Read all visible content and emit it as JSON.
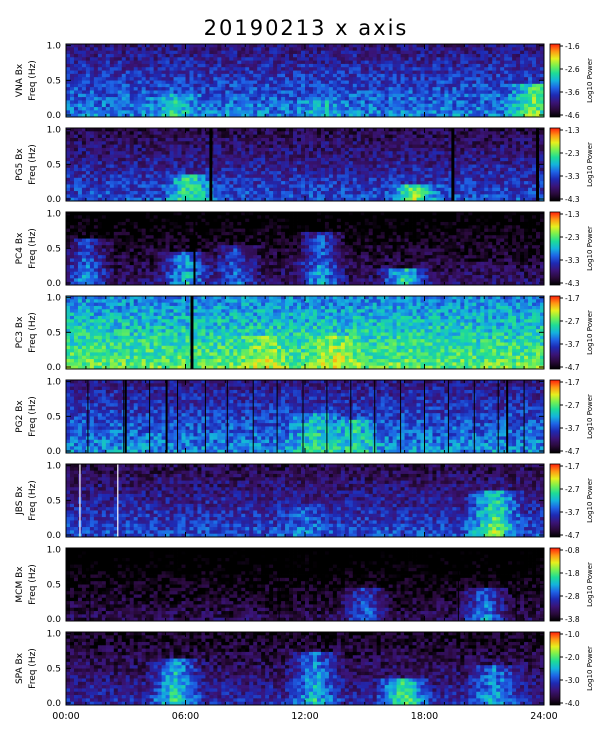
{
  "chart_data": {
    "type": "heatmap",
    "title": "20190213 x axis",
    "xlabel": "",
    "x_tick_labels": [
      "00:00",
      "06:00",
      "12:00",
      "18:00",
      "24:00"
    ],
    "x_range_hours": [
      0,
      24
    ],
    "ylabel": "Freq (Hz)",
    "ylim": [
      0.0,
      1.0
    ],
    "y_tick_labels": [
      "0.0",
      "0.5",
      "1.0"
    ],
    "colorbar_label": "Log10 Power",
    "colorscale": [
      "#000000",
      "#2a0a3c",
      "#3a1478",
      "#1e2ab4",
      "#1e64e6",
      "#14b4dc",
      "#1edc96",
      "#78f050",
      "#e6f01e",
      "#ff9614",
      "#ff1e0a"
    ],
    "panels": [
      {
        "station_label": "VNA Bx",
        "cbar_ticks": [
          "-1.6",
          "-2.6",
          "-3.6",
          "-4.6"
        ],
        "base_level": 0.38,
        "background": "#1a2aa8",
        "lines": [],
        "gaps": [],
        "bursts": [
          [
            5.5,
            0.55,
            0.15
          ],
          [
            13.0,
            0.5,
            0.1
          ],
          [
            23.5,
            0.7,
            0.3
          ]
        ]
      },
      {
        "station_label": "PG5 Bx",
        "cbar_ticks": [
          "-1.3",
          "-2.3",
          "-3.3",
          "-4.3"
        ],
        "base_level": 0.3,
        "background": "#201a8c",
        "lines": [],
        "gaps": [
          [
            7.2,
            7.35
          ],
          [
            19.35,
            19.5
          ],
          [
            23.6,
            23.75
          ]
        ],
        "bursts": [
          [
            6.2,
            0.65,
            0.2
          ],
          [
            17.5,
            0.7,
            0.1
          ]
        ]
      },
      {
        "station_label": "PC4 Bx",
        "cbar_ticks": [
          "-1.3",
          "-2.3",
          "-3.3",
          "-4.3"
        ],
        "base_level": 0.12,
        "background": "#0a0418",
        "lines": [],
        "gaps": [
          [
            6.4,
            6.5
          ]
        ],
        "bursts": [
          [
            1.0,
            0.45,
            0.5
          ],
          [
            6.0,
            0.55,
            0.3
          ],
          [
            8.5,
            0.4,
            0.4
          ],
          [
            12.8,
            0.5,
            0.6
          ],
          [
            17.0,
            0.6,
            0.1
          ]
        ]
      },
      {
        "station_label": "PC3 Bx",
        "cbar_ticks": [
          "-1.7",
          "-2.7",
          "-3.7",
          "-4.7"
        ],
        "base_level": 0.62,
        "background": "#1e9ab4",
        "lines": [],
        "gaps": [
          [
            6.25,
            6.4
          ]
        ],
        "bursts": [
          [
            10.0,
            0.75,
            0.3
          ],
          [
            13.5,
            0.75,
            0.3
          ]
        ]
      },
      {
        "station_label": "PG2 Bx",
        "cbar_ticks": [
          "-1.7",
          "-2.7",
          "-3.7",
          "-4.7"
        ],
        "base_level": 0.4,
        "background": "#1a3ab4",
        "lines": [
          1.1,
          2.9,
          4.2,
          5.6,
          7.0,
          8.1,
          9.4,
          10.6,
          11.9,
          13.1,
          14.3,
          15.5,
          16.8,
          18.0,
          19.2,
          20.5,
          21.7,
          23.0
        ],
        "gaps": [
          [
            2.95,
            3.05
          ],
          [
            5.0,
            5.1
          ],
          [
            22.1,
            22.2
          ]
        ],
        "bursts": [
          [
            12.5,
            0.6,
            0.4
          ],
          [
            14.5,
            0.6,
            0.3
          ]
        ]
      },
      {
        "station_label": "JBS Bx",
        "cbar_ticks": [
          "-1.7",
          "-2.7",
          "-3.7",
          "-4.7"
        ],
        "base_level": 0.3,
        "background": "#2a1e8c",
        "lines": [],
        "gaps": [],
        "bursts": [
          [
            21.5,
            0.7,
            0.5
          ],
          [
            12.0,
            0.4,
            0.3
          ]
        ],
        "white_lines": [
          0.7,
          2.6
        ]
      },
      {
        "station_label": "MCM Bx",
        "cbar_ticks": [
          "-0.8",
          "-1.8",
          "-2.8",
          "-3.8"
        ],
        "base_level": 0.08,
        "background": "#050208",
        "lines": [
          1.2,
          10.7,
          19.7,
          22.6
        ],
        "gaps": [],
        "bursts": [
          [
            15.0,
            0.4,
            0.3
          ],
          [
            21.0,
            0.45,
            0.3
          ]
        ]
      },
      {
        "station_label": "SPA Bx",
        "cbar_ticks": [
          "-1.0",
          "-2.0",
          "-3.0",
          "-4.0"
        ],
        "base_level": 0.22,
        "background": "#150a3a",
        "lines": [],
        "gaps": [],
        "bursts": [
          [
            5.5,
            0.6,
            0.5
          ],
          [
            12.5,
            0.55,
            0.6
          ],
          [
            17.0,
            0.7,
            0.2
          ],
          [
            21.5,
            0.5,
            0.4
          ]
        ]
      }
    ]
  }
}
